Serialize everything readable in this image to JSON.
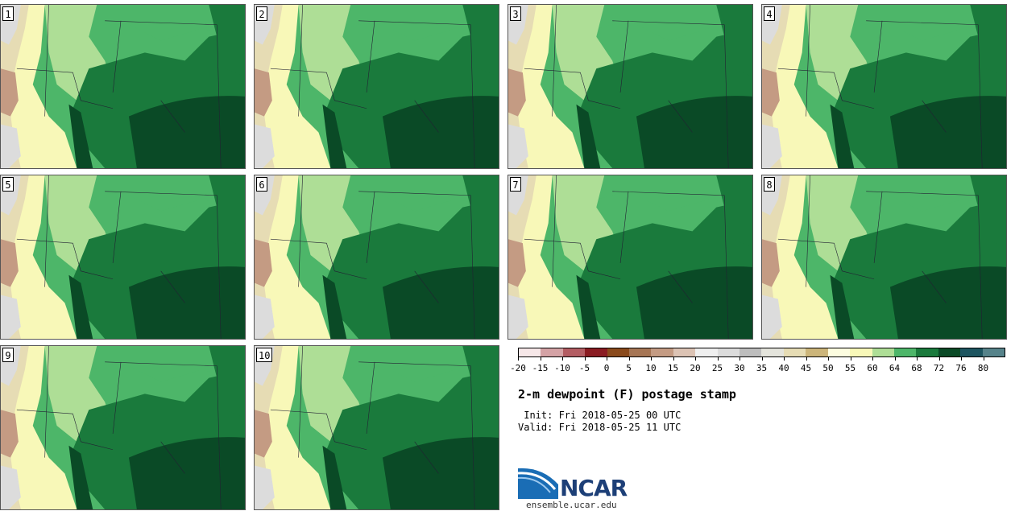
{
  "product": {
    "title": "2-m dewpoint (F) postage stamp",
    "init": " Init: Fri 2018-05-25 00 UTC",
    "valid": "Valid: Fri 2018-05-25 11 UTC"
  },
  "members": [
    {
      "label": "1"
    },
    {
      "label": "2"
    },
    {
      "label": "3"
    },
    {
      "label": "4"
    },
    {
      "label": "5"
    },
    {
      "label": "6"
    },
    {
      "label": "7"
    },
    {
      "label": "8"
    },
    {
      "label": "9"
    },
    {
      "label": "10"
    }
  ],
  "colorbar": {
    "ticks": [
      "-20",
      "-15",
      "-10",
      "-5",
      "0",
      "5",
      "10",
      "15",
      "20",
      "25",
      "30",
      "35",
      "40",
      "45",
      "50",
      "55",
      "60",
      "64",
      "68",
      "72",
      "76",
      "80"
    ],
    "colors": [
      "#f6e7e8",
      "#d4a2a5",
      "#b35d63",
      "#8a1c22",
      "#8a4a1c",
      "#a67554",
      "#c49b83",
      "#dcc3b4",
      "#efefef",
      "#dcdcdc",
      "#bdbdbd",
      "#e4e4dc",
      "#e6dcb4",
      "#ccb57a",
      "#fdfde0",
      "#f8f8b8",
      "#aede96",
      "#4db669",
      "#1a7a3c",
      "#0a4a26",
      "#1d5560",
      "#56838a"
    ]
  },
  "logo": {
    "name": "NCAR",
    "url": "ensemble.ucar.edu"
  }
}
